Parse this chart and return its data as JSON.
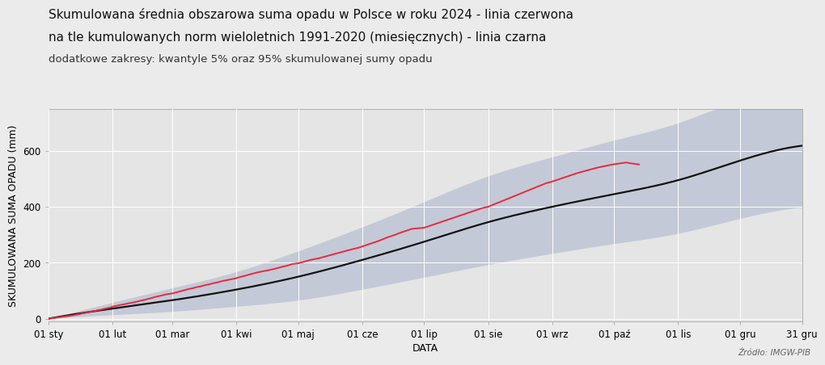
{
  "title_line1": "Skumulowana średnia obszarowa suma opadu w Polsce w roku 2024 - linia czerwona",
  "title_line2": "na tle kumulowanych norm wieloletnich 1991-2020 (miesięcznych) - linia czarna",
  "title_line3": "dodatkowe zakresy: kwantyle 5% oraz 95% skumulowanej sumy opadu",
  "xlabel": "DATA",
  "ylabel": "SKUMULOWANA SUMA OPADU (mm)",
  "source": "Źródło: IMGW-PIB",
  "x_tick_labels": [
    "01 sty",
    "01 lut",
    "01 mar",
    "01 kwi",
    "01 maj",
    "01 cze",
    "01 lip",
    "01 sie",
    "01 wrz",
    "01 paź",
    "01 lis",
    "01 gru",
    "31 gru"
  ],
  "x_tick_days": [
    1,
    32,
    61,
    92,
    122,
    153,
    183,
    214,
    245,
    275,
    306,
    336,
    366
  ],
  "ylim": [
    -10,
    750
  ],
  "yticks": [
    0,
    200,
    400,
    600
  ],
  "background_color": "#ebebeb",
  "plot_bg_color": "#e5e5e5",
  "band_color": "#9ca8c8",
  "band_alpha": 0.45,
  "black_line_color": "#111111",
  "red_line_color": "#e8293a",
  "grid_color": "#ffffff",
  "title_fontsize": 11.0,
  "subtitle_fontsize": 9.5,
  "axis_label_fontsize": 9,
  "tick_fontsize": 8.5,
  "norm_cumsum": [
    0,
    36,
    66,
    104,
    150,
    210,
    275,
    345,
    400,
    445,
    495,
    565,
    618
  ],
  "q05_cumsum": [
    0,
    14,
    26,
    44,
    66,
    105,
    148,
    193,
    233,
    268,
    305,
    358,
    398
  ],
  "q95_cumsum": [
    0,
    58,
    110,
    168,
    242,
    328,
    418,
    510,
    578,
    638,
    700,
    775,
    750
  ],
  "red_days": [
    1,
    3,
    5,
    7,
    9,
    11,
    13,
    15,
    17,
    19,
    21,
    23,
    25,
    27,
    29,
    31,
    32,
    34,
    36,
    38,
    40,
    42,
    44,
    46,
    48,
    50,
    52,
    54,
    56,
    58,
    61,
    63,
    65,
    67,
    69,
    71,
    73,
    75,
    77,
    79,
    81,
    83,
    85,
    87,
    89,
    91,
    92,
    94,
    96,
    98,
    100,
    102,
    104,
    106,
    108,
    110,
    112,
    114,
    117,
    119,
    122,
    124,
    126,
    128,
    130,
    132,
    134,
    136,
    138,
    140,
    142,
    144,
    146,
    148,
    151,
    153,
    155,
    157,
    159,
    161,
    163,
    165,
    167,
    169,
    171,
    173,
    175,
    177,
    183,
    185,
    187,
    189,
    191,
    193,
    195,
    197,
    199,
    201,
    203,
    205,
    207,
    209,
    211,
    214,
    216,
    218,
    220,
    222,
    224,
    226,
    228,
    230,
    232,
    234,
    236,
    238,
    240,
    242,
    245,
    247,
    249,
    251,
    253,
    255,
    257,
    259,
    261,
    263,
    265,
    267,
    269,
    271,
    273,
    275,
    277,
    279,
    281,
    283,
    285,
    287
  ],
  "red_vals": [
    0,
    2,
    4,
    6,
    8,
    10,
    12,
    15,
    18,
    21,
    24,
    27,
    30,
    33,
    37,
    40,
    43,
    46,
    49,
    52,
    55,
    58,
    61,
    65,
    68,
    72,
    76,
    80,
    83,
    87,
    90,
    94,
    98,
    102,
    106,
    109,
    113,
    116,
    120,
    123,
    127,
    130,
    134,
    137,
    140,
    143,
    145,
    149,
    153,
    157,
    161,
    165,
    168,
    171,
    174,
    177,
    181,
    185,
    190,
    195,
    198,
    202,
    206,
    210,
    213,
    216,
    220,
    224,
    228,
    232,
    236,
    240,
    244,
    248,
    253,
    258,
    263,
    268,
    273,
    278,
    284,
    290,
    295,
    300,
    306,
    311,
    316,
    321,
    325,
    330,
    335,
    340,
    345,
    350,
    355,
    360,
    365,
    370,
    375,
    380,
    385,
    390,
    395,
    400,
    406,
    412,
    418,
    424,
    430,
    436,
    442,
    448,
    454,
    460,
    466,
    472,
    478,
    484,
    490,
    495,
    500,
    505,
    510,
    515,
    520,
    524,
    528,
    532,
    536,
    540,
    543,
    546,
    549,
    552,
    554,
    556,
    558,
    555,
    553,
    551
  ]
}
